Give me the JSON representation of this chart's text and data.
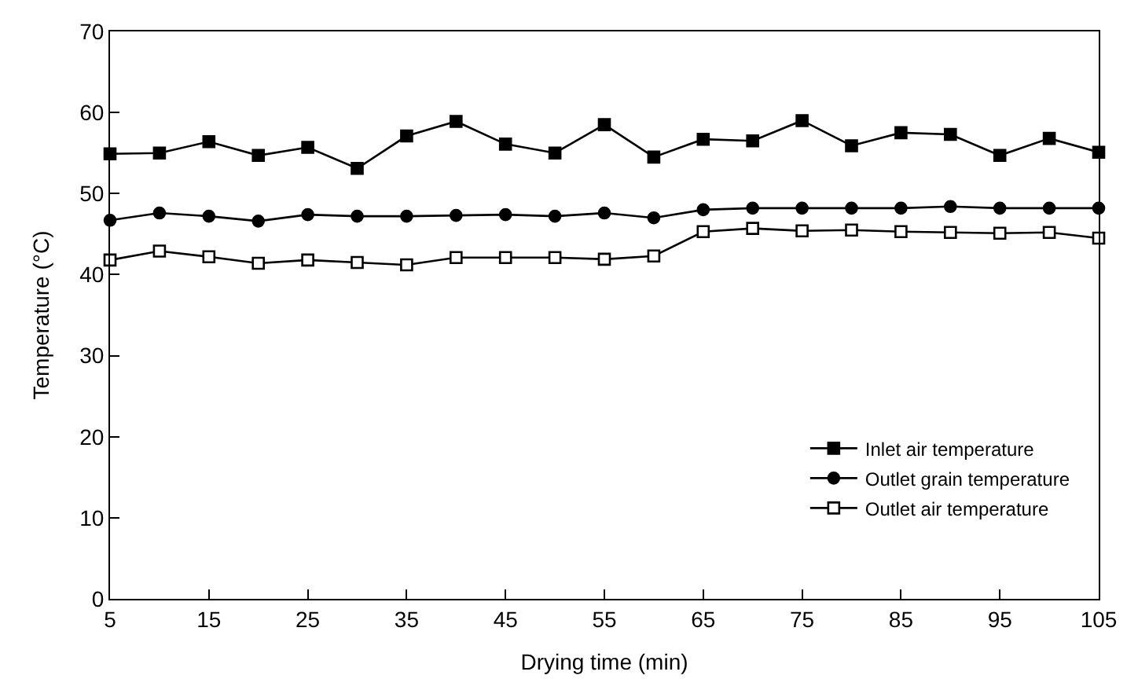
{
  "chart_data": {
    "type": "line",
    "xlabel": "Drying time (min)",
    "ylabel": "Temperature (°C)",
    "x": [
      5,
      10,
      15,
      20,
      25,
      30,
      35,
      40,
      45,
      50,
      55,
      60,
      65,
      70,
      75,
      80,
      85,
      90,
      95,
      100,
      105
    ],
    "series": [
      {
        "name": "Inlet air temperature",
        "color": "#000000",
        "marker": "square",
        "values": [
          54.9,
          55,
          56.4,
          54.7,
          55.7,
          53.1,
          57.1,
          58.9,
          56.1,
          55,
          58.5,
          54.5,
          56.7,
          56.5,
          59,
          55.9,
          57.5,
          57.3,
          54.7,
          56.8,
          55.1
        ]
      },
      {
        "name": "Outlet grain temperature",
        "color": "#000000",
        "marker": "circle",
        "values": [
          46.7,
          47.6,
          47.2,
          46.6,
          47.4,
          47.2,
          47.2,
          47.3,
          47.4,
          47.2,
          47.6,
          47,
          48,
          48.2,
          48.2,
          48.2,
          48.2,
          48.4,
          48.2,
          48.2,
          48.2
        ]
      },
      {
        "name": "Outlet air temperature",
        "color": "#000000",
        "marker": "square-open",
        "values": [
          41.8,
          42.9,
          42.2,
          41.4,
          41.8,
          41.5,
          41.2,
          42.1,
          42.1,
          42.1,
          41.9,
          42.3,
          45.3,
          45.7,
          45.4,
          45.5,
          45.3,
          45.2,
          45.1,
          45.2,
          44.5
        ]
      }
    ],
    "xlim": [
      5,
      105
    ],
    "xticks": [
      5,
      15,
      25,
      35,
      45,
      55,
      65,
      75,
      85,
      95,
      105
    ],
    "ylim": [
      0,
      70
    ],
    "yticks": [
      0,
      10,
      20,
      30,
      40,
      50,
      60,
      70
    ],
    "legend": "bottom right",
    "line_style": "solid"
  }
}
